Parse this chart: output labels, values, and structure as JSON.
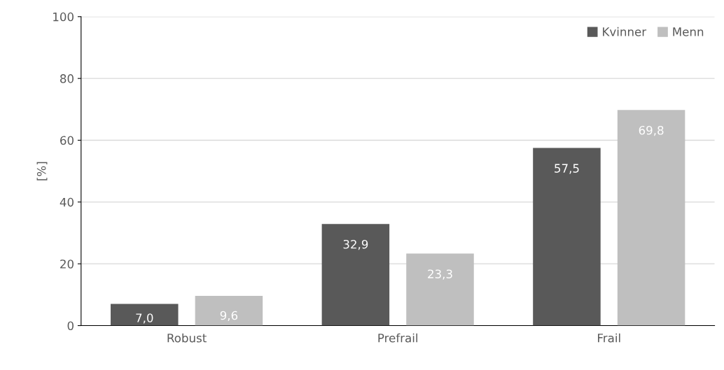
{
  "chart_data": {
    "type": "bar",
    "ylabel": "[%]",
    "categories": [
      "Robust",
      "Prefrail",
      "Frail"
    ],
    "series": [
      {
        "name": "Kvinner",
        "color": "#595959",
        "values": [
          7.0,
          32.9,
          57.5
        ],
        "value_labels": [
          "7,0",
          "32,9",
          "57,5"
        ]
      },
      {
        "name": "Menn",
        "color": "#bfbfbf",
        "values": [
          9.6,
          23.3,
          69.8
        ],
        "value_labels": [
          "9,6",
          "23,3",
          "69,8"
        ]
      }
    ],
    "ylim": [
      0,
      100
    ],
    "yticks": [
      0,
      20,
      40,
      60,
      80,
      100
    ],
    "grid": "y",
    "legend": "top right"
  }
}
